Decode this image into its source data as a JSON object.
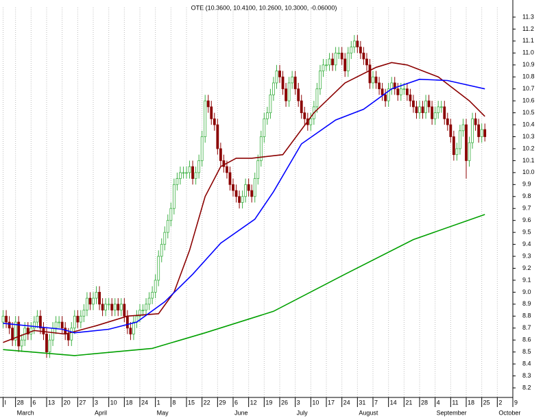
{
  "chart_data": {
    "type": "candlestick",
    "title": "OTE (10.3600, 10.4100, 10.2600, 10.3000, -0.06000)",
    "open": [
      8.75,
      8.8,
      8.75,
      8.7,
      8.6,
      8.75,
      8.55,
      8.6,
      8.7,
      8.65,
      8.7,
      8.75,
      8.8,
      8.7,
      8.65,
      8.5,
      8.6,
      8.7,
      8.75,
      8.75,
      8.7,
      8.65,
      8.6,
      8.7,
      8.8,
      8.75,
      8.8,
      8.85,
      8.95,
      8.9,
      8.95,
      9.0,
      8.9,
      8.85,
      8.9,
      8.9,
      8.85,
      8.9,
      8.85,
      8.9,
      8.8,
      8.7,
      8.65,
      8.75,
      8.8,
      8.85,
      8.85,
      8.9,
      8.95,
      9.0,
      9.1,
      9.3,
      9.4,
      9.5,
      9.6,
      9.7,
      9.9,
      9.95,
      10.0,
      10.0,
      10.0,
      10.05,
      9.95,
      10.0,
      10.1,
      10.3,
      10.6,
      10.55,
      10.45,
      10.4,
      10.2,
      10.1,
      10.05,
      10.0,
      9.9,
      9.85,
      9.8,
      9.75,
      9.8,
      9.9,
      9.85,
      9.8,
      9.95,
      10.1,
      10.3,
      10.45,
      10.5,
      10.65,
      10.75,
      10.85,
      10.8,
      10.7,
      10.6,
      10.75,
      10.8,
      10.7,
      10.6,
      10.5,
      10.45,
      10.4,
      10.45,
      10.55,
      10.7,
      10.85,
      10.9,
      10.9,
      10.95,
      10.9,
      11.0,
      11.0,
      10.95,
      10.85,
      11.0,
      11.05,
      11.1,
      11.05,
      11.0,
      10.95,
      10.9,
      10.75,
      10.8,
      10.75,
      10.7,
      10.65,
      10.6,
      10.7,
      10.75,
      10.7,
      10.65,
      10.7,
      10.7,
      10.65,
      10.6,
      10.55,
      10.5,
      10.55,
      10.5,
      10.6,
      10.55,
      10.45,
      10.5,
      10.55,
      10.55,
      10.45,
      10.4,
      10.3,
      10.15,
      10.2,
      10.35,
      10.4,
      10.1,
      10.25,
      10.45,
      10.4,
      10.3,
      10.36
    ],
    "high": [
      8.85,
      8.85,
      8.8,
      8.75,
      8.8,
      8.8,
      8.65,
      8.75,
      8.75,
      8.75,
      8.8,
      8.85,
      8.85,
      8.75,
      8.7,
      8.65,
      8.75,
      8.8,
      8.8,
      8.8,
      8.75,
      8.7,
      8.75,
      8.85,
      8.85,
      8.85,
      8.9,
      9.0,
      9.0,
      9.0,
      9.05,
      9.05,
      8.95,
      8.95,
      8.95,
      8.95,
      8.95,
      8.95,
      8.95,
      8.95,
      8.85,
      8.75,
      8.8,
      8.85,
      8.9,
      8.9,
      8.95,
      9.0,
      9.05,
      9.15,
      9.35,
      9.45,
      9.55,
      9.65,
      9.75,
      9.95,
      10.0,
      10.05,
      10.05,
      10.05,
      10.1,
      10.1,
      10.05,
      10.15,
      10.35,
      10.65,
      10.65,
      10.6,
      10.5,
      10.45,
      10.25,
      10.15,
      10.1,
      10.05,
      9.95,
      9.9,
      9.85,
      9.85,
      9.95,
      9.95,
      9.9,
      10.0,
      10.15,
      10.35,
      10.5,
      10.55,
      10.7,
      10.8,
      10.9,
      10.9,
      10.85,
      10.75,
      10.8,
      10.85,
      10.85,
      10.75,
      10.65,
      10.55,
      10.5,
      10.5,
      10.6,
      10.75,
      10.9,
      10.95,
      10.95,
      11.0,
      11.0,
      11.05,
      11.05,
      11.05,
      11.0,
      11.05,
      11.1,
      11.15,
      11.15,
      11.1,
      11.05,
      11.0,
      10.95,
      10.85,
      10.85,
      10.8,
      10.75,
      10.7,
      10.75,
      10.8,
      10.8,
      10.75,
      10.75,
      10.75,
      10.75,
      10.7,
      10.65,
      10.6,
      10.6,
      10.6,
      10.65,
      10.65,
      10.6,
      10.55,
      10.6,
      10.6,
      10.6,
      10.5,
      10.45,
      10.35,
      10.25,
      10.4,
      10.45,
      10.45,
      10.3,
      10.5,
      10.5,
      10.45,
      10.41,
      10.41
    ],
    "low": [
      8.7,
      8.7,
      8.65,
      8.55,
      8.55,
      8.5,
      8.5,
      8.55,
      8.6,
      8.6,
      8.65,
      8.7,
      8.65,
      8.6,
      8.45,
      8.45,
      8.55,
      8.65,
      8.7,
      8.65,
      8.6,
      8.55,
      8.55,
      8.65,
      8.7,
      8.7,
      8.75,
      8.8,
      8.85,
      8.85,
      8.9,
      8.85,
      8.8,
      8.8,
      8.85,
      8.8,
      8.8,
      8.8,
      8.8,
      8.75,
      8.65,
      8.6,
      8.6,
      8.7,
      8.75,
      8.8,
      8.8,
      8.85,
      8.9,
      8.95,
      9.05,
      9.25,
      9.35,
      9.45,
      9.55,
      9.65,
      9.85,
      9.9,
      9.95,
      9.95,
      9.95,
      9.9,
      9.9,
      9.95,
      10.05,
      10.25,
      10.5,
      10.4,
      10.35,
      10.15,
      10.05,
      10.0,
      9.95,
      9.85,
      9.8,
      9.75,
      9.7,
      9.7,
      9.75,
      9.8,
      9.75,
      9.75,
      9.9,
      10.05,
      10.25,
      10.4,
      10.45,
      10.6,
      10.7,
      10.75,
      10.65,
      10.55,
      10.55,
      10.7,
      10.65,
      10.55,
      10.45,
      10.4,
      10.35,
      10.35,
      10.4,
      10.5,
      10.65,
      10.8,
      10.85,
      10.85,
      10.85,
      10.85,
      10.95,
      10.9,
      10.8,
      10.8,
      10.95,
      11.0,
      11.0,
      10.95,
      10.9,
      10.85,
      10.7,
      10.7,
      10.7,
      10.65,
      10.6,
      10.55,
      10.55,
      10.65,
      10.65,
      10.6,
      10.6,
      10.65,
      10.6,
      10.55,
      10.5,
      10.45,
      10.45,
      10.45,
      10.45,
      10.5,
      10.4,
      10.4,
      10.45,
      10.5,
      10.4,
      10.35,
      10.25,
      10.1,
      10.1,
      10.15,
      10.3,
      9.95,
      10.05,
      10.2,
      10.35,
      10.25,
      10.25,
      10.26
    ],
    "close": [
      8.8,
      8.75,
      8.7,
      8.6,
      8.75,
      8.55,
      8.6,
      8.7,
      8.65,
      8.7,
      8.75,
      8.8,
      8.7,
      8.65,
      8.5,
      8.6,
      8.7,
      8.75,
      8.75,
      8.7,
      8.65,
      8.6,
      8.7,
      8.8,
      8.75,
      8.8,
      8.85,
      8.95,
      8.9,
      8.95,
      9.0,
      8.9,
      8.85,
      8.9,
      8.9,
      8.85,
      8.9,
      8.85,
      8.9,
      8.8,
      8.7,
      8.65,
      8.75,
      8.8,
      8.85,
      8.85,
      8.9,
      8.95,
      9.0,
      9.1,
      9.3,
      9.4,
      9.5,
      9.6,
      9.7,
      9.9,
      9.95,
      10.0,
      10.0,
      10.0,
      10.05,
      9.95,
      10.0,
      10.1,
      10.3,
      10.6,
      10.55,
      10.45,
      10.4,
      10.2,
      10.1,
      10.05,
      10.0,
      9.9,
      9.85,
      9.8,
      9.75,
      9.8,
      9.9,
      9.85,
      9.8,
      9.95,
      10.1,
      10.3,
      10.45,
      10.5,
      10.65,
      10.75,
      10.85,
      10.8,
      10.7,
      10.6,
      10.75,
      10.8,
      10.7,
      10.6,
      10.5,
      10.45,
      10.4,
      10.45,
      10.55,
      10.7,
      10.85,
      10.9,
      10.9,
      10.95,
      10.9,
      11.0,
      11.0,
      10.95,
      10.85,
      11.0,
      11.05,
      11.1,
      11.05,
      11.0,
      10.95,
      10.9,
      10.75,
      10.8,
      10.75,
      10.7,
      10.65,
      10.6,
      10.7,
      10.75,
      10.7,
      10.65,
      10.7,
      10.7,
      10.65,
      10.6,
      10.55,
      10.5,
      10.55,
      10.5,
      10.6,
      10.55,
      10.45,
      10.5,
      10.55,
      10.55,
      10.45,
      10.4,
      10.3,
      10.15,
      10.2,
      10.35,
      10.4,
      10.1,
      10.25,
      10.45,
      10.4,
      10.3,
      10.36,
      10.3
    ],
    "up_color": "#3cb043",
    "down_color": "#8b0000",
    "series": [
      {
        "color": "#8b0000",
        "x": [
          0,
          10,
          20,
          30,
          40,
          50,
          55,
          60,
          65,
          70,
          75,
          80,
          90,
          100,
          110,
          120,
          125,
          130,
          140,
          150,
          155
        ],
        "values": [
          8.58,
          8.68,
          8.65,
          8.72,
          8.8,
          8.82,
          9.0,
          9.35,
          9.8,
          10.05,
          10.12,
          10.12,
          10.15,
          10.5,
          10.75,
          10.88,
          10.92,
          10.9,
          10.8,
          10.6,
          10.47
        ]
      },
      {
        "color": "#0000ff",
        "x": [
          0,
          19,
          23,
          34,
          43,
          52,
          61,
          70,
          81,
          87,
          96,
          107,
          116,
          125,
          134,
          143,
          155
        ],
        "values": [
          8.74,
          8.69,
          8.66,
          8.69,
          8.75,
          8.92,
          9.15,
          9.41,
          9.61,
          9.84,
          10.24,
          10.44,
          10.53,
          10.7,
          10.78,
          10.77,
          10.7
        ]
      },
      {
        "color": "#00a000",
        "x": [
          0,
          23,
          48,
          65,
          87,
          110,
          132,
          155
        ],
        "values": [
          8.52,
          8.47,
          8.53,
          8.66,
          8.84,
          9.15,
          9.44,
          9.65
        ]
      }
    ],
    "xlim": [
      -1,
      164
    ],
    "xticks": [
      {
        "value": 0,
        "label": "I"
      },
      {
        "value": 4,
        "label": "28"
      },
      {
        "value": 9,
        "label": "6"
      },
      {
        "value": 14,
        "label": "13"
      },
      {
        "value": 19,
        "label": "20"
      },
      {
        "value": 24,
        "label": "27"
      },
      {
        "value": 29,
        "label": "3"
      },
      {
        "value": 34,
        "label": "10"
      },
      {
        "value": 39,
        "label": "18"
      },
      {
        "value": 44,
        "label": "24"
      },
      {
        "value": 49,
        "label": "1"
      },
      {
        "value": 54,
        "label": "8"
      },
      {
        "value": 59,
        "label": "15"
      },
      {
        "value": 64,
        "label": "22"
      },
      {
        "value": 69,
        "label": "29"
      },
      {
        "value": 74,
        "label": "6"
      },
      {
        "value": 79,
        "label": "12"
      },
      {
        "value": 84,
        "label": "19"
      },
      {
        "value": 89,
        "label": "26"
      },
      {
        "value": 94,
        "label": "3"
      },
      {
        "value": 99,
        "label": "10"
      },
      {
        "value": 104,
        "label": "17"
      },
      {
        "value": 109,
        "label": "24"
      },
      {
        "value": 114,
        "label": "31"
      },
      {
        "value": 119,
        "label": "7"
      },
      {
        "value": 124,
        "label": "14"
      },
      {
        "value": 129,
        "label": "21"
      },
      {
        "value": 134,
        "label": "28"
      },
      {
        "value": 139,
        "label": "4"
      },
      {
        "value": 144,
        "label": "11"
      },
      {
        "value": 149,
        "label": "18"
      },
      {
        "value": 154,
        "label": "25"
      },
      {
        "value": 159,
        "label": "2"
      },
      {
        "value": 164,
        "label": "9"
      }
    ],
    "months": [
      {
        "value": 4,
        "label": "March"
      },
      {
        "value": 29,
        "label": "April"
      },
      {
        "value": 49,
        "label": "May"
      },
      {
        "value": 74,
        "label": "June"
      },
      {
        "value": 94,
        "label": "July"
      },
      {
        "value": 114,
        "label": "August"
      },
      {
        "value": 139,
        "label": "September"
      },
      {
        "value": 159,
        "label": "October"
      }
    ],
    "ylim": [
      8.12,
      11.38
    ],
    "yticks": [
      8.2,
      8.3,
      8.4,
      8.5,
      8.6,
      8.7,
      8.8,
      8.9,
      {
        "value": 9,
        "label": "9.0"
      },
      9.1,
      9.2,
      9.3,
      9.4,
      9.5,
      9.6,
      9.7,
      9.8,
      9.9,
      {
        "value": 10,
        "label": "10.0"
      },
      10.1,
      10.2,
      10.3,
      10.4,
      10.5,
      10.6,
      10.7,
      10.8,
      10.9,
      {
        "value": 11,
        "label": "11.0"
      },
      11.1,
      11.2,
      11.3
    ]
  }
}
